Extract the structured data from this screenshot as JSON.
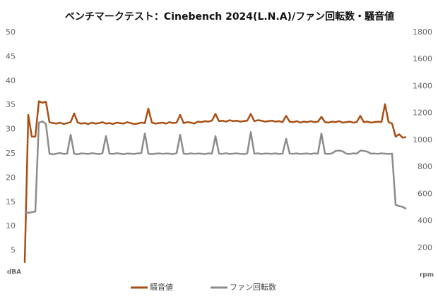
{
  "chart_data": {
    "type": "line",
    "title": "ベンチマークテスト：Cinebench 2024(L.N.A)/ファン回転数・騒音値",
    "y_label": "dBA",
    "y2_label": "rpm",
    "ylim": [
      0,
      50
    ],
    "yticks": [
      5,
      10,
      15,
      20,
      25,
      30,
      35,
      40,
      45,
      50
    ],
    "y2lim": [
      0,
      1800
    ],
    "y2ticks": [
      200,
      400,
      600,
      800,
      1000,
      1200,
      1400,
      1600,
      1800
    ],
    "grid": false,
    "legend": "bottom",
    "series": [
      {
        "name": "騒音値",
        "color": "#a84f14",
        "values": [
          2.5,
          33,
          28.5,
          28.5,
          35.8,
          35.5,
          35.7,
          31.5,
          31.3,
          31.2,
          31.4,
          31.1,
          31.3,
          31.5,
          33.3,
          31.4,
          31.2,
          31.3,
          31.1,
          31.4,
          31.2,
          31.3,
          31.5,
          31.2,
          31.3,
          31.1,
          31.4,
          31.3,
          31.2,
          31.5,
          31.3,
          31.1,
          31.2,
          31.4,
          31.3,
          34.3,
          31.4,
          31.2,
          31.3,
          31.4,
          31.2,
          31.5,
          31.3,
          31.4,
          33,
          31.3,
          31.5,
          31.4,
          31.2,
          31.6,
          31.5,
          31.7,
          31.6,
          31.8,
          33.2,
          31.7,
          31.8,
          31.6,
          31.9,
          31.7,
          31.8,
          31.6,
          31.7,
          31.8,
          33.2,
          31.7,
          31.9,
          31.8,
          31.6,
          31.7,
          31.8,
          31.6,
          31.7,
          31.5,
          32.8,
          31.6,
          31.5,
          31.7,
          31.4,
          31.6,
          31.5,
          31.7,
          31.5,
          31.6,
          32.6,
          31.5,
          31.4,
          31.6,
          31.5,
          31.7,
          31.4,
          31.5,
          31.6,
          31.4,
          31.5,
          32.8,
          31.5,
          31.6,
          31.4,
          31.5,
          31.6,
          31.5,
          35.2,
          31.5,
          31.2,
          28.5,
          29,
          28.3,
          28.4
        ]
      },
      {
        "name": "ファン回転数",
        "color": "#8c8c8c",
        "axis": "y2",
        "values": [
          470,
          460,
          465,
          470,
          1130,
          1140,
          1120,
          900,
          895,
          900,
          905,
          898,
          900,
          1040,
          900,
          895,
          902,
          900,
          898,
          903,
          900,
          897,
          902,
          1030,
          900,
          898,
          903,
          900,
          896,
          901,
          900,
          898,
          902,
          903,
          1050,
          900,
          897,
          900,
          902,
          899,
          901,
          900,
          897,
          903,
          1040,
          900,
          898,
          902,
          899,
          901,
          900,
          897,
          902,
          900,
          1030,
          900,
          899,
          903,
          898,
          900,
          902,
          899,
          897,
          901,
          1060,
          900,
          902,
          898,
          901,
          900,
          899,
          902,
          898,
          900,
          1010,
          901,
          899,
          902,
          898,
          900,
          901,
          898,
          902,
          900,
          1050,
          900,
          898,
          902,
          920,
          922,
          918,
          900,
          898,
          902,
          900,
          922,
          920,
          915,
          900,
          901,
          899,
          902,
          900,
          898,
          900,
          520,
          510,
          505,
          490
        ]
      }
    ]
  }
}
